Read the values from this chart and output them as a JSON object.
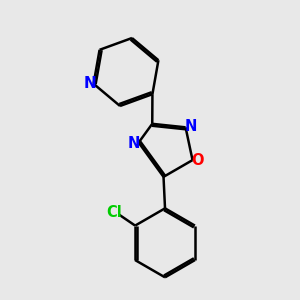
{
  "background_color": "#e8e8e8",
  "bond_color": "#000000",
  "bond_width": 1.8,
  "atom_colors": {
    "N": "#0000ff",
    "O": "#ff0000",
    "Cl": "#00cc00",
    "C": "#000000"
  },
  "font_size": 10.5
}
